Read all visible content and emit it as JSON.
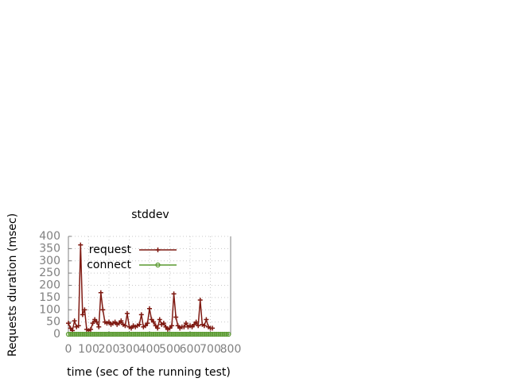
{
  "chart_data": {
    "type": "line",
    "title": "stddev",
    "x_label": "time (sec of the running test)",
    "y_label": "Requests duration (msec)",
    "xlim": [
      0,
      800
    ],
    "xticks": [
      0,
      100,
      200,
      300,
      400,
      500,
      600,
      700,
      800
    ],
    "ylim": [
      0,
      400
    ],
    "yticks": [
      0,
      50,
      100,
      150,
      200,
      250,
      300,
      350,
      400
    ],
    "grid": true,
    "legend": "top-left",
    "series": [
      {
        "name": "request",
        "color": "#7f1a12",
        "marker": "plus",
        "x": [
          0,
          10,
          20,
          30,
          40,
          50,
          60,
          70,
          80,
          90,
          100,
          110,
          120,
          130,
          140,
          150,
          160,
          170,
          180,
          190,
          200,
          210,
          220,
          230,
          240,
          250,
          260,
          270,
          280,
          290,
          300,
          310,
          320,
          330,
          340,
          350,
          360,
          370,
          380,
          390,
          400,
          410,
          420,
          430,
          440,
          450,
          460,
          470,
          480,
          490,
          500,
          510,
          520,
          530,
          540,
          550,
          560,
          570,
          580,
          590,
          600,
          610,
          620,
          630,
          640,
          650,
          660,
          670,
          680,
          690,
          700,
          710
        ],
        "values": [
          45,
          25,
          15,
          55,
          30,
          35,
          365,
          80,
          100,
          20,
          15,
          20,
          45,
          60,
          50,
          30,
          170,
          100,
          50,
          45,
          50,
          40,
          45,
          50,
          40,
          45,
          55,
          40,
          35,
          85,
          30,
          25,
          35,
          30,
          35,
          40,
          80,
          30,
          35,
          45,
          105,
          60,
          50,
          35,
          25,
          60,
          40,
          45,
          30,
          20,
          25,
          35,
          165,
          70,
          35,
          25,
          30,
          30,
          45,
          30,
          35,
          30,
          40,
          50,
          35,
          140,
          40,
          35,
          60,
          30,
          25,
          25
        ]
      },
      {
        "name": "connect",
        "color": "#5a9a30",
        "marker": "circle",
        "x": [
          0,
          10,
          20,
          30,
          40,
          50,
          60,
          70,
          80,
          90,
          100,
          110,
          120,
          130,
          140,
          150,
          160,
          170,
          180,
          190,
          200,
          210,
          220,
          230,
          240,
          250,
          260,
          270,
          280,
          290,
          300,
          310,
          320,
          330,
          340,
          350,
          360,
          370,
          380,
          390,
          400,
          410,
          420,
          430,
          440,
          450,
          460,
          470,
          480,
          490,
          500,
          510,
          520,
          530,
          540,
          550,
          560,
          570,
          580,
          590,
          600,
          610,
          620,
          630,
          640,
          650,
          660,
          670,
          680,
          690,
          700,
          710,
          720,
          730,
          740,
          750,
          760,
          770,
          780,
          790
        ],
        "values": [
          0,
          0,
          0,
          0,
          0,
          0,
          0,
          0,
          0,
          0,
          0,
          0,
          0,
          0,
          0,
          0,
          0,
          0,
          0,
          0,
          0,
          0,
          0,
          0,
          0,
          0,
          0,
          0,
          0,
          0,
          0,
          0,
          0,
          0,
          0,
          0,
          0,
          0,
          0,
          0,
          0,
          0,
          0,
          0,
          0,
          0,
          0,
          0,
          0,
          0,
          0,
          0,
          0,
          0,
          0,
          0,
          0,
          0,
          0,
          0,
          0,
          0,
          0,
          0,
          0,
          0,
          0,
          0,
          0,
          0,
          0,
          0,
          0,
          0,
          0,
          0,
          0,
          0,
          0,
          0
        ]
      }
    ]
  }
}
